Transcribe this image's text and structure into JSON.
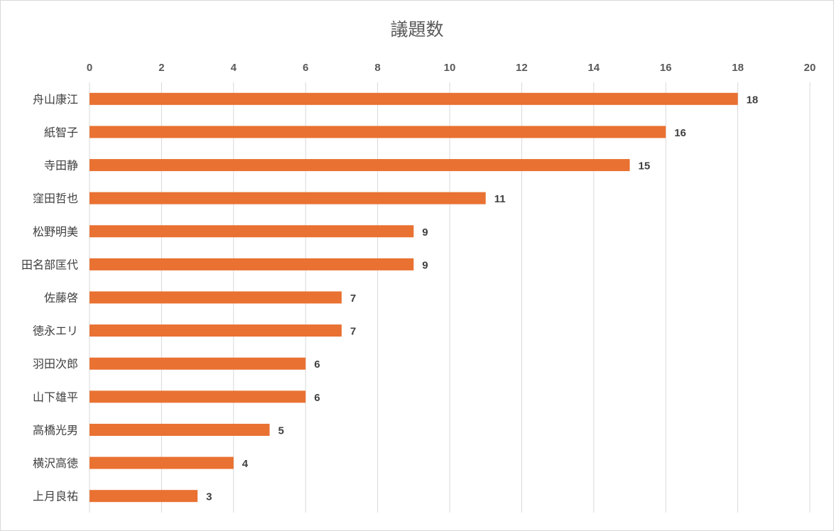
{
  "chart_data": {
    "type": "bar",
    "orientation": "horizontal",
    "title": "議題数",
    "categories": [
      "舟山康江",
      "紙智子",
      "寺田静",
      "窪田哲也",
      "松野明美",
      "田名部匡代",
      "佐藤啓",
      "徳永エリ",
      "羽田次郎",
      "山下雄平",
      "高橋光男",
      "横沢高徳",
      "上月良祐"
    ],
    "values": [
      18,
      16,
      15,
      11,
      9,
      9,
      7,
      7,
      6,
      6,
      5,
      4,
      3
    ],
    "xlim": [
      0,
      20
    ],
    "x_ticks": [
      0,
      2,
      4,
      6,
      8,
      10,
      12,
      14,
      16,
      18,
      20
    ],
    "x_axis_position": "top",
    "grid": true,
    "data_labels": true,
    "bar_color": "#E97132",
    "gridline_color": "#D9D9D9"
  }
}
